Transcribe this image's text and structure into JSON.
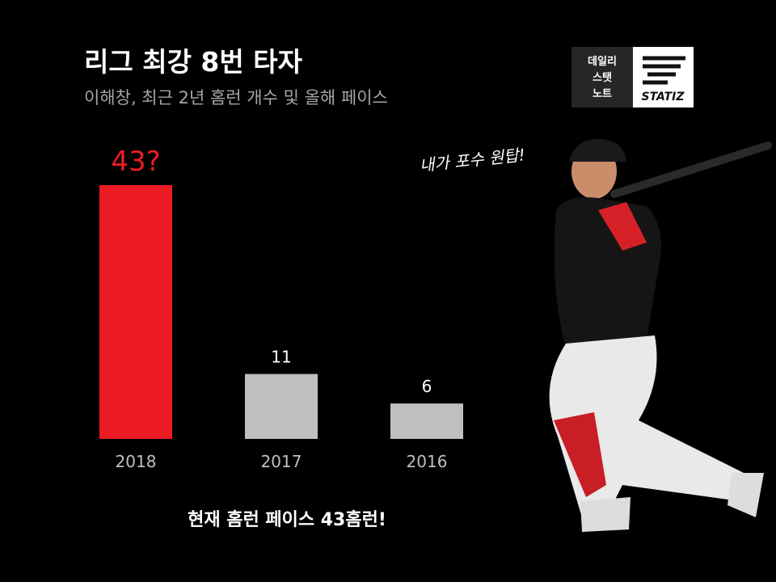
{
  "chart_data": {
    "type": "bar",
    "title": "리그 최강 8번 타자",
    "subtitle": "이해창, 최근 2년 홈런 개수 및 올해 페이스",
    "categories": [
      "2018",
      "2017",
      "2016"
    ],
    "values": [
      43,
      11,
      6
    ],
    "value_labels": [
      "43?",
      "11",
      "6"
    ],
    "colors": [
      "#ed1c24",
      "#bfbfbf",
      "#bfbfbf"
    ],
    "annotation": "내가 포수 원탑!",
    "footnote": "현재 홈런 페이스 43홈런!"
  },
  "logo": {
    "lines": [
      "데일리",
      "스탯",
      "노트"
    ],
    "brand": "STATIZ"
  }
}
